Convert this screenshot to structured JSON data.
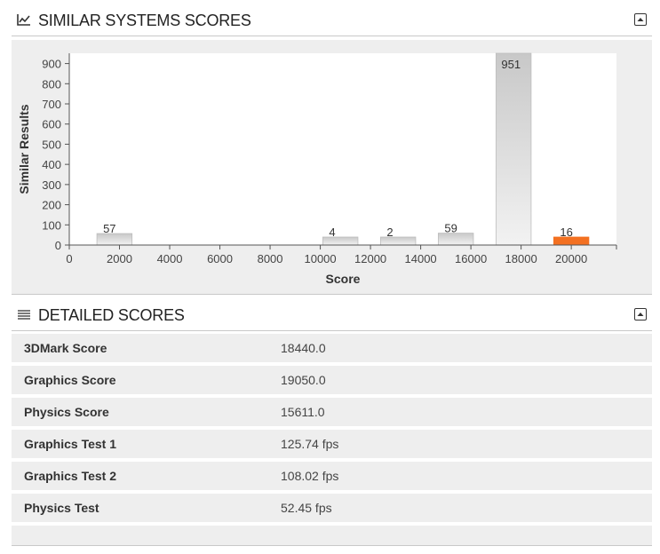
{
  "similar_section": {
    "title": "SIMILAR SYSTEMS SCORES",
    "icon": "line-chart-icon",
    "collapse_icon": "collapse-up-icon"
  },
  "detailed_section": {
    "title": "DETAILED SCORES",
    "icon": "list-icon",
    "collapse_icon": "collapse-up-icon"
  },
  "colors": {
    "bar_default": "#d4d4d4",
    "bar_highlight": "#f37021",
    "panel_bg": "#eeeeee",
    "plot_bg": "#ffffff"
  },
  "chart_data": {
    "type": "bar",
    "xlabel": "Score",
    "ylabel": "Similar Results",
    "x_ticks": [
      0,
      2000,
      4000,
      6000,
      8000,
      10000,
      12000,
      14000,
      16000,
      18000,
      20000
    ],
    "y_ticks": [
      0,
      100,
      200,
      300,
      400,
      500,
      600,
      700,
      800,
      900
    ],
    "xlim": [
      0,
      21800
    ],
    "ylim": [
      0,
      951
    ],
    "grid": false,
    "bars": [
      {
        "x_start": 1100,
        "x_end": 2500,
        "value": 57,
        "label": "57",
        "highlight": false
      },
      {
        "x_start": 10100,
        "x_end": 11500,
        "value": 4,
        "label": "4",
        "highlight": false
      },
      {
        "x_start": 12400,
        "x_end": 13800,
        "value": 2,
        "label": "2",
        "highlight": false
      },
      {
        "x_start": 14700,
        "x_end": 16100,
        "value": 59,
        "label": "59",
        "highlight": false
      },
      {
        "x_start": 17000,
        "x_end": 18400,
        "value": 951,
        "label": "951",
        "highlight": false
      },
      {
        "x_start": 19300,
        "x_end": 20700,
        "value": 16,
        "label": "16",
        "highlight": true
      }
    ]
  },
  "scores": [
    {
      "label": "3DMark Score",
      "value": "18440.0"
    },
    {
      "label": "Graphics Score",
      "value": "19050.0"
    },
    {
      "label": "Physics Score",
      "value": "15611.0"
    },
    {
      "label": "Graphics Test 1",
      "value": "125.74 fps"
    },
    {
      "label": "Graphics Test 2",
      "value": "108.02 fps"
    },
    {
      "label": "Physics Test",
      "value": "52.45 fps"
    }
  ]
}
